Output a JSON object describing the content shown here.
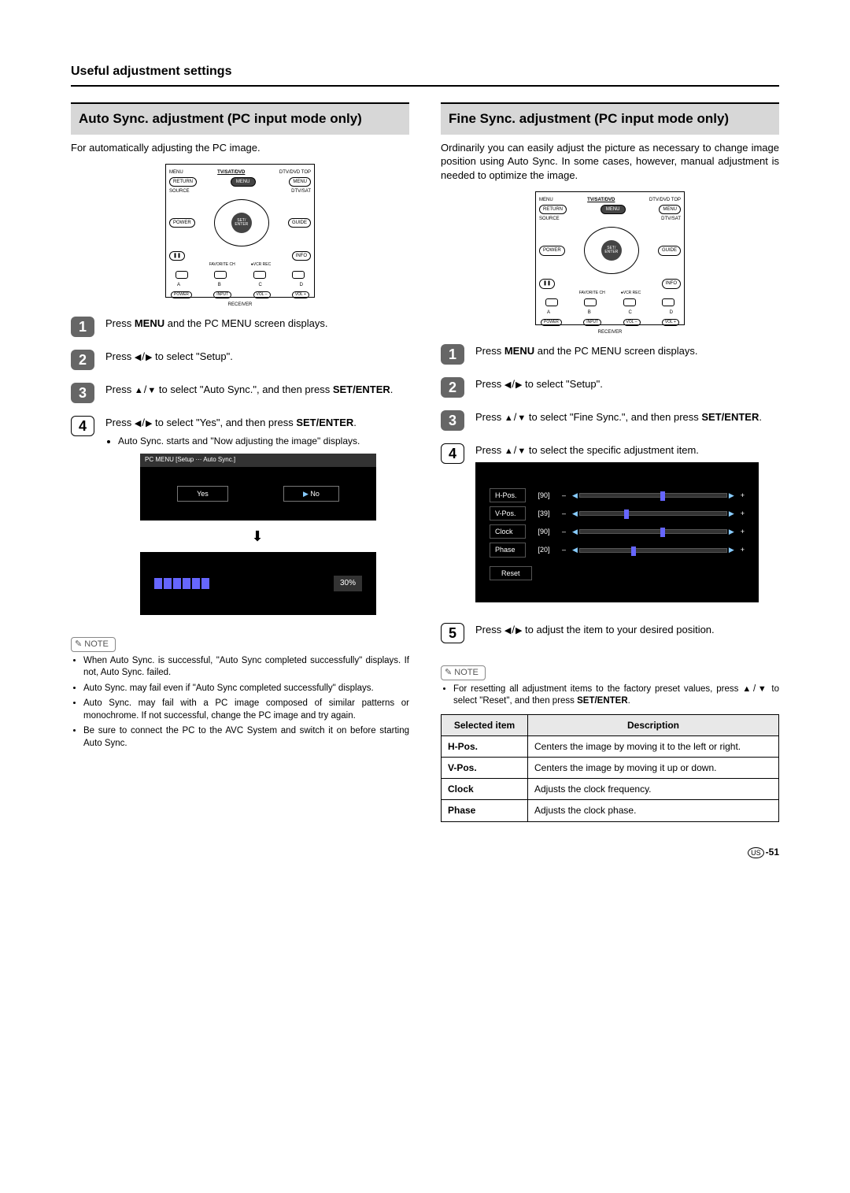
{
  "page": {
    "section_title": "Useful adjustment settings",
    "footer_region": "US",
    "footer_page": "-51"
  },
  "remote": {
    "top_left": "MENU",
    "top_mid": "TV/SAT/DVD",
    "top_right": "DTV/DVD TOP",
    "row2_left": "RETURN",
    "row2_mid": "MENU",
    "row2_right": "MENU",
    "source": "SOURCE",
    "dtvsat": "DTV/SAT",
    "power": "POWER",
    "guide": "GUIDE",
    "center": "SET/\nENTER",
    "dtvsat2": "DTV/SAT",
    "info": "INFO",
    "fav": "FAVORITE CH",
    "vcr": "●VCR REC",
    "a": "A",
    "b": "B",
    "c": "C",
    "d": "D",
    "recv_power": "POWER",
    "recv_input": "INPUT",
    "recv_volm": "VOL –",
    "recv_volp": "VOL +",
    "receiver": "RECEIVER"
  },
  "left": {
    "header": "Auto Sync. adjustment (PC input mode only)",
    "intro": "For automatically adjusting the PC image.",
    "steps": {
      "s1": "Press MENU and the PC MENU screen displays.",
      "s2": "Press ◀/▶ to select \"Setup\".",
      "s3": "Press ▲/▼ to select \"Auto Sync.\", and then press SET/ENTER.",
      "s4a": "Press ◀/▶ to select \"Yes\", and then press SET/ENTER.",
      "s4b": "Auto Sync. starts and \"Now adjusting the image\" displays."
    },
    "menu": {
      "breadcrumb": "PC MENU   [Setup ··· Auto Sync.]",
      "yes": "Yes",
      "no": "No",
      "percent": "30%"
    },
    "note_label": "NOTE",
    "notes": [
      "When Auto Sync. is successful, \"Auto Sync completed successfully\" displays. If not, Auto Sync. failed.",
      "Auto Sync. may fail even if \"Auto Sync completed successfully\" displays.",
      "Auto Sync. may fail with a PC image composed of similar patterns or monochrome. If not successful, change the PC image and try again.",
      "Be sure to connect the PC to the AVC System and switch it on before starting Auto Sync."
    ]
  },
  "right": {
    "header": "Fine Sync. adjustment (PC input mode only)",
    "intro": "Ordinarily you can easily adjust the picture as necessary to change image position using Auto Sync. In some cases, however, manual adjustment is needed to optimize the image.",
    "steps": {
      "s1": "Press MENU and the PC MENU screen displays.",
      "s2": "Press ◀/▶ to select \"Setup\".",
      "s3": "Press ▲/▼ to select \"Fine Sync.\", and then press SET/ENTER.",
      "s4": "Press ▲/▼ to select the specific adjustment item.",
      "s5": "Press ◀/▶ to adjust the item to your desired position."
    },
    "adj": {
      "rows": [
        {
          "label": "H-Pos.",
          "val": "[90]",
          "pos": 55
        },
        {
          "label": "V-Pos.",
          "val": "[39]",
          "pos": 30
        },
        {
          "label": "Clock",
          "val": "[90]",
          "pos": 55
        },
        {
          "label": "Phase",
          "val": "[20]",
          "pos": 35
        }
      ],
      "reset": "Reset"
    },
    "note_label": "NOTE",
    "note_text": "For resetting all adjustment items to the factory preset values, press ▲/▼ to select \"Reset\", and then press SET/ENTER.",
    "table": {
      "h1": "Selected item",
      "h2": "Description",
      "rows": [
        {
          "k": "H-Pos.",
          "v": "Centers the image by moving it to the left or right."
        },
        {
          "k": "V-Pos.",
          "v": "Centers the image by moving it up or down."
        },
        {
          "k": "Clock",
          "v": "Adjusts the clock frequency."
        },
        {
          "k": "Phase",
          "v": "Adjusts the clock phase."
        }
      ]
    }
  }
}
